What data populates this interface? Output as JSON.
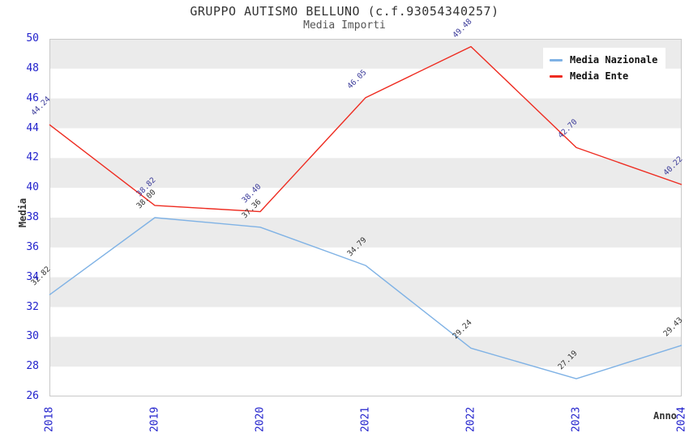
{
  "chart_data": {
    "type": "line",
    "title": "GRUPPO AUTISMO BELLUNO (c.f.93054340257)",
    "subtitle": "Media Importi",
    "xlabel": "Anno",
    "ylabel": "Media",
    "categories": [
      "2018",
      "2019",
      "2020",
      "2021",
      "2022",
      "2023",
      "2024"
    ],
    "series": [
      {
        "name": "Media Nazionale",
        "color": "#7fb2e5",
        "label_color": "#333333",
        "values": [
          32.82,
          38.0,
          37.36,
          34.79,
          29.24,
          27.19,
          29.43
        ]
      },
      {
        "name": "Media Ente",
        "color": "#ee2b20",
        "label_color": "#3a3a99",
        "values": [
          44.24,
          38.82,
          38.4,
          46.05,
          49.48,
          42.7,
          40.22
        ]
      }
    ],
    "ylim": [
      26,
      50
    ],
    "ytick_step": 2,
    "grid": "horizontal-bands",
    "value_label_decimals": 2,
    "legend_position": "top-right",
    "colors": {
      "tick_labels": "#2222cc",
      "band_fill": "#ebebeb",
      "plot_border": "#c9c9c9",
      "title": "#333333",
      "subtitle": "#555555",
      "legend_text": "#111111",
      "axis_title": "#333333"
    }
  }
}
